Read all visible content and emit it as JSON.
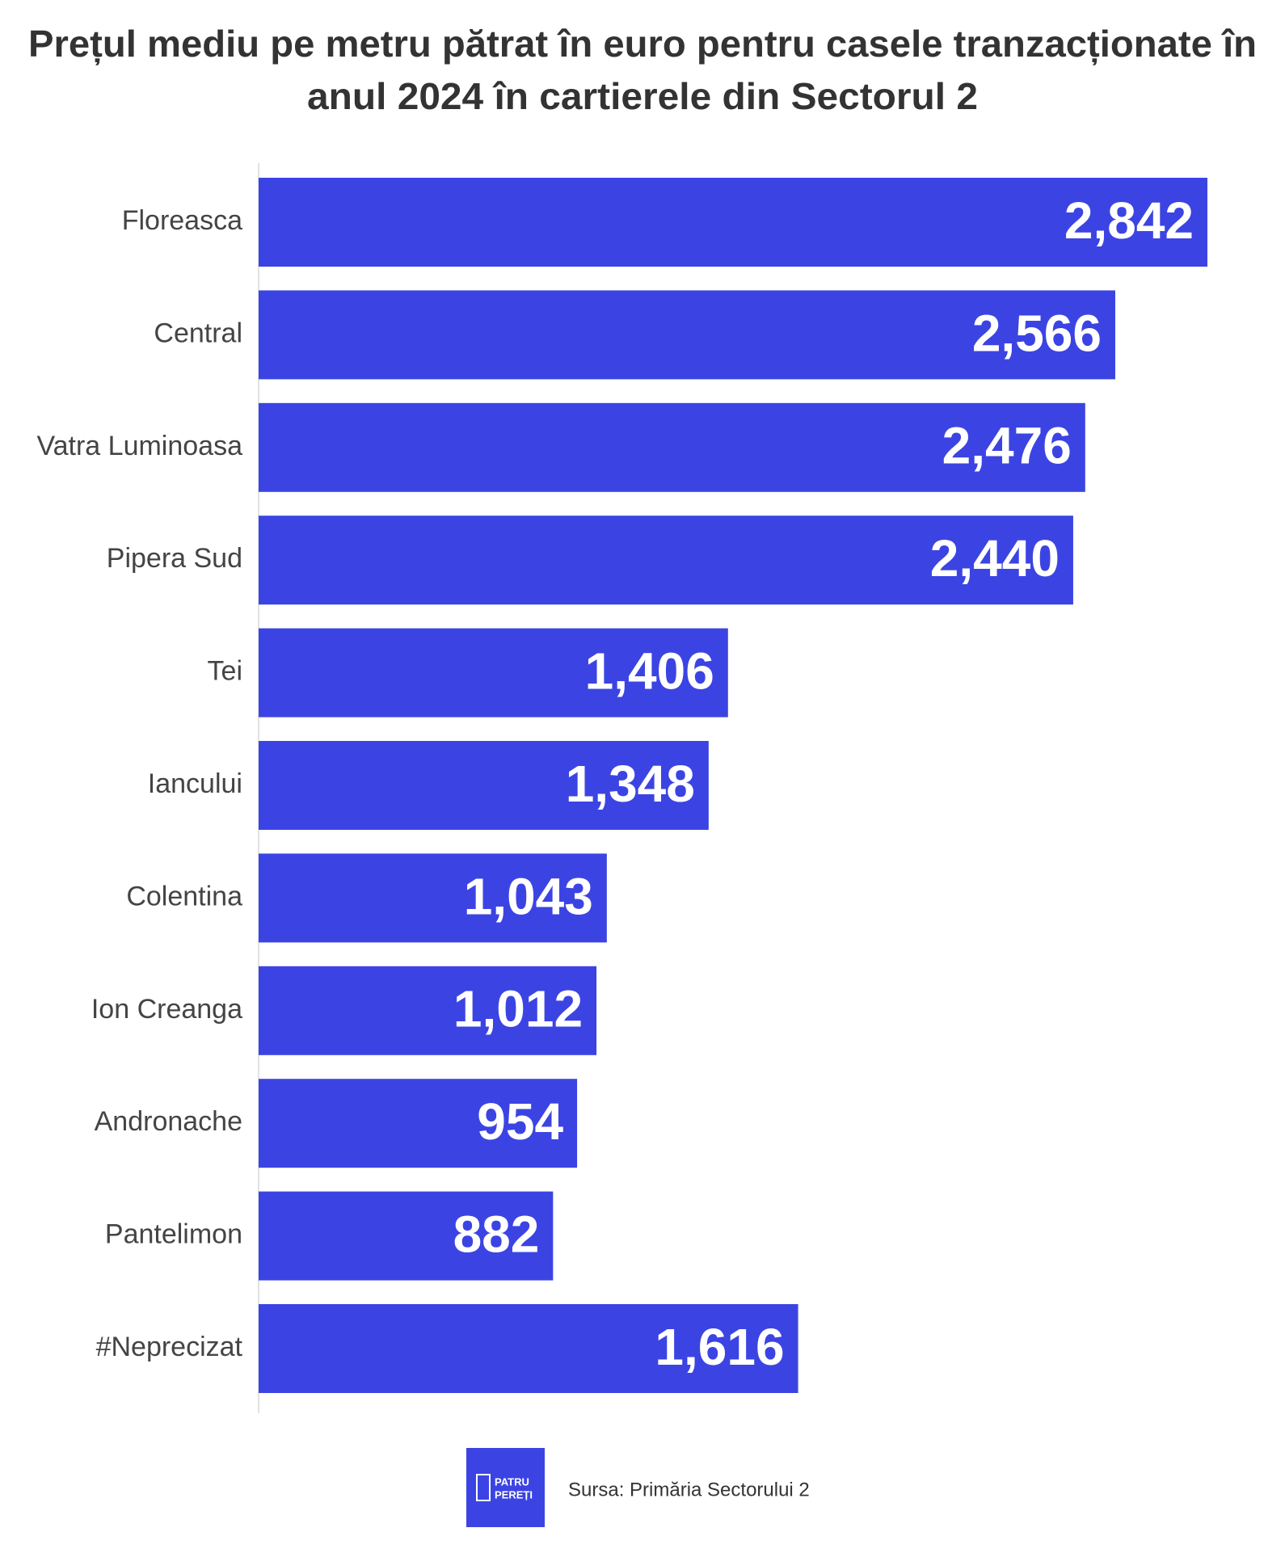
{
  "chart_data": {
    "type": "hbar",
    "title": [
      "Prețul mediu pe metru pătrat în euro pentru casele tranzacționate în",
      "anul 2024 în cartierele din Sectorul 2"
    ],
    "categories": [
      "Floreasca",
      "Central",
      "Vatra Luminoasa",
      "Pipera Sud",
      "Tei",
      "Iancului",
      "Colentina",
      "Ion Creanga",
      "Andronache",
      "Pantelimon",
      "#Neprecizat"
    ],
    "values": [
      2842,
      2566,
      2476,
      2440,
      1406,
      1348,
      1043,
      1012,
      954,
      882,
      1616
    ],
    "value_labels": [
      "2,842",
      "2,566",
      "2,476",
      "2,440",
      "1,406",
      "1,348",
      "1,043",
      "1,012",
      "954",
      "882",
      "1,616"
    ],
    "color": "#3b44e3"
  },
  "footer": {
    "logo": [
      "PATRU",
      "PEREȚI"
    ],
    "source": "Sursa: Primăria Sectorului 2"
  }
}
